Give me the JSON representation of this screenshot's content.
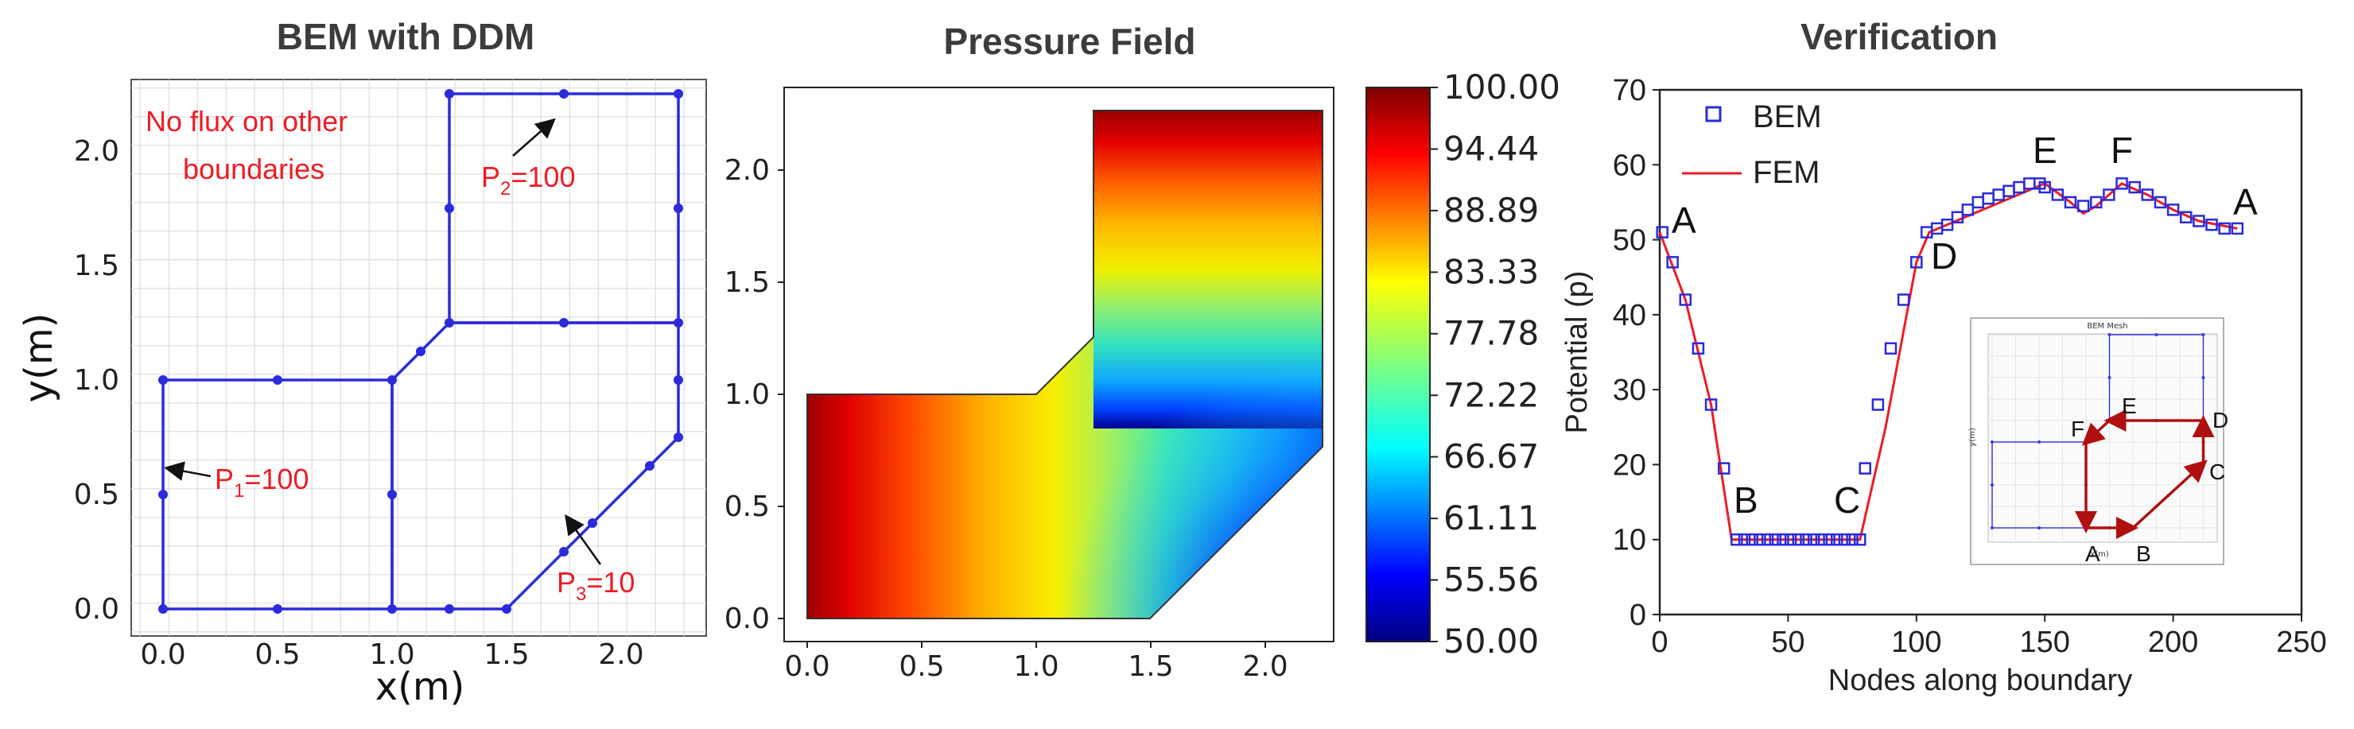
{
  "panel1": {
    "title": "BEM with DDM",
    "xlabel": "x(m)",
    "ylabel": "y(m)",
    "xticks": [
      "0.0",
      "0.5",
      "1.0",
      "1.5",
      "2.0"
    ],
    "yticks": [
      "0.0",
      "0.5",
      "1.0",
      "1.5",
      "2.0"
    ],
    "note_line1": "No flux on other",
    "note_line2": "boundaries",
    "p1_label": "P",
    "p1_sub": "1",
    "p1_value": "=100",
    "p2_label": "P",
    "p2_sub": "2",
    "p2_value": "=100",
    "p3_label": "P",
    "p3_sub": "3",
    "p3_value": "=10",
    "line_color": "#2b2bdb",
    "annotation_color": "#ee1c25"
  },
  "panel2": {
    "title": "Pressure Field",
    "xticks": [
      "0.0",
      "0.5",
      "1.0",
      "1.5",
      "2.0"
    ],
    "yticks": [
      "0.0",
      "0.5",
      "1.0",
      "1.5",
      "2.0"
    ],
    "colorbar_ticks": [
      "100.00",
      "94.44",
      "88.89",
      "83.33",
      "77.78",
      "72.22",
      "66.67",
      "61.11",
      "55.56",
      "50.00"
    ],
    "colormap": "jet"
  },
  "panel3": {
    "title": "Verification",
    "xlabel": "Nodes along boundary",
    "ylabel": "Potential (p)",
    "xticks": [
      "0",
      "50",
      "100",
      "150",
      "200",
      "250"
    ],
    "yticks": [
      "0",
      "10",
      "20",
      "30",
      "40",
      "50",
      "60",
      "70"
    ],
    "legend_bem": "BEM",
    "legend_fem": "FEM",
    "point_labels": [
      "A",
      "B",
      "C",
      "D",
      "E",
      "F",
      "A"
    ],
    "inset_title": "BEM Mesh",
    "inset_labels": [
      "F",
      "E",
      "D",
      "C",
      "B",
      "A"
    ],
    "inset_xlabel": "x(m)",
    "inset_ylabel": "y(m)",
    "bem_color": "#2b2bdb",
    "fem_color": "#ee1c25"
  },
  "chart_data": [
    {
      "type": "line",
      "title": "BEM with DDM",
      "xlabel": "x(m)",
      "ylabel": "y(m)",
      "xlim": [
        -0.1,
        2.35
      ],
      "ylim": [
        -0.1,
        2.35
      ],
      "grid": true,
      "subdomains": [
        [
          [
            0,
            0
          ],
          [
            1,
            0
          ],
          [
            1,
            1
          ],
          [
            0,
            1
          ]
        ],
        [
          [
            1,
            0
          ],
          [
            1.5,
            0
          ],
          [
            2.25,
            0.75
          ],
          [
            2.25,
            1.25
          ],
          [
            1.25,
            1.25
          ],
          [
            1,
            1
          ]
        ],
        [
          [
            1.25,
            1.25
          ],
          [
            2.25,
            1.25
          ],
          [
            2.25,
            2.25
          ],
          [
            1.25,
            2.25
          ]
        ]
      ],
      "nodes": [
        [
          0,
          0
        ],
        [
          0.5,
          0
        ],
        [
          1,
          0
        ],
        [
          1.25,
          0
        ],
        [
          1.5,
          0
        ],
        [
          0,
          0.5
        ],
        [
          0,
          1
        ],
        [
          0.5,
          1
        ],
        [
          1,
          1
        ],
        [
          1,
          0.5
        ],
        [
          1.125,
          1.125
        ],
        [
          1.25,
          1.25
        ],
        [
          1.75,
          1.25
        ],
        [
          2.25,
          1.25
        ],
        [
          1.25,
          1.75
        ],
        [
          1.25,
          2.25
        ],
        [
          1.75,
          2.25
        ],
        [
          2.25,
          2.25
        ],
        [
          2.25,
          1.75
        ],
        [
          2.25,
          1
        ],
        [
          2.25,
          0.75
        ],
        [
          1.75,
          0.25
        ],
        [
          1.875,
          0.375
        ],
        [
          2.125,
          0.625
        ]
      ],
      "annotations": [
        "No flux on other boundaries",
        "P1=100",
        "P2=100",
        "P3=10"
      ]
    },
    {
      "type": "heatmap",
      "title": "Pressure Field",
      "xlim": [
        -0.1,
        2.35
      ],
      "ylim": [
        -0.1,
        2.35
      ],
      "colorbar": {
        "min": 50.0,
        "max": 100.0,
        "ticks": [
          100.0,
          94.44,
          88.89,
          83.33,
          77.78,
          72.22,
          66.67,
          61.11,
          55.56,
          50.0
        ],
        "colormap": "jet"
      },
      "domain": [
        [
          0,
          0
        ],
        [
          1.5,
          0
        ],
        [
          2.25,
          0.75
        ],
        [
          2.25,
          2.25
        ],
        [
          1.25,
          2.25
        ],
        [
          1.25,
          1.25
        ],
        [
          1,
          1
        ],
        [
          0,
          1
        ]
      ]
    },
    {
      "type": "line",
      "title": "Verification",
      "xlabel": "Nodes along boundary",
      "ylabel": "Potential (p)",
      "xlim": [
        0,
        250
      ],
      "ylim": [
        0,
        70
      ],
      "legend": "top-left",
      "series": [
        {
          "name": "BEM",
          "marker": "square",
          "x": [
            1,
            5,
            10,
            15,
            20,
            25,
            30,
            33,
            36,
            39,
            42,
            45,
            48,
            51,
            54,
            57,
            60,
            63,
            66,
            69,
            72,
            75,
            78,
            80,
            85,
            90,
            95,
            100,
            104,
            108,
            112,
            116,
            120,
            124,
            128,
            132,
            136,
            140,
            144,
            148,
            150,
            155,
            160,
            165,
            170,
            175,
            180,
            185,
            190,
            195,
            200,
            205,
            210,
            215,
            220,
            225
          ],
          "y": [
            51,
            47,
            42,
            35.5,
            28,
            19.5,
            10,
            10,
            10,
            10,
            10,
            10,
            10,
            10,
            10,
            10,
            10,
            10,
            10,
            10,
            10,
            10,
            10,
            19.5,
            28,
            35.5,
            42,
            47,
            51,
            51.5,
            52,
            53,
            54,
            55,
            55.5,
            56,
            56.5,
            57,
            57.5,
            57.5,
            57,
            56,
            55,
            54.5,
            55,
            56,
            57.5,
            57,
            56,
            55,
            54,
            53,
            52.5,
            52,
            51.5,
            51.5
          ]
        },
        {
          "name": "FEM",
          "marker": "line",
          "x": [
            0,
            10,
            20,
            28,
            78,
            88,
            100,
            105,
            150,
            160,
            165,
            170,
            180,
            190,
            200,
            210,
            225
          ],
          "y": [
            51,
            42,
            28,
            10,
            10,
            25,
            47,
            51,
            57.5,
            55,
            53.5,
            54.5,
            57.5,
            56,
            54,
            52.5,
            51.5
          ]
        }
      ],
      "annotations": [
        "A",
        "B",
        "C",
        "D",
        "E",
        "F",
        "A"
      ]
    }
  ]
}
